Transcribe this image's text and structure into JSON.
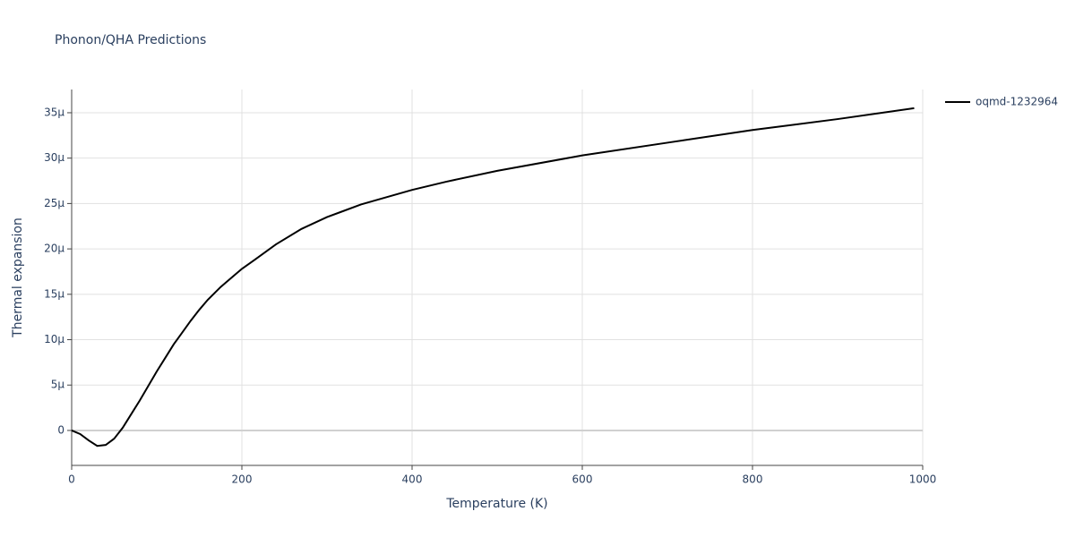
{
  "chart_data": {
    "type": "line",
    "title": "Phonon/QHA Predictions",
    "xlabel": "Temperature (K)",
    "ylabel": "Thermal expansion",
    "x": [
      0,
      10,
      20,
      30,
      40,
      50,
      60,
      70,
      80,
      90,
      100,
      110,
      120,
      130,
      140,
      150,
      160,
      175,
      190,
      200,
      215,
      240,
      270,
      300,
      340,
      400,
      440,
      500,
      600,
      700,
      800,
      900,
      990
    ],
    "series": [
      {
        "name": "oqmd-1232964",
        "color": "#000000",
        "values": [
          0,
          -4e-07,
          -1.1e-06,
          -1.7e-06,
          -1.6e-06,
          -9e-07,
          3e-07,
          1.8e-06,
          3.3e-06,
          4.9e-06,
          6.5e-06,
          8e-06,
          9.5e-06,
          1.08e-05,
          1.21e-05,
          1.33e-05,
          1.44e-05,
          1.58e-05,
          1.7e-05,
          1.78e-05,
          1.88e-05,
          2.05e-05,
          2.22e-05,
          2.35e-05,
          2.49e-05,
          2.65e-05,
          2.74e-05,
          2.86e-05,
          3.03e-05,
          3.17e-05,
          3.31e-05,
          3.43e-05,
          3.55e-05
        ]
      }
    ],
    "xlim": [
      0,
      1000
    ],
    "xticks": [
      0,
      200,
      400,
      600,
      800,
      1000
    ],
    "ylim": [
      -3.85e-06,
      3.756e-05
    ],
    "yticks": [
      0,
      {
        "value": 5e-06,
        "label": "5μ"
      },
      {
        "value": 1e-05,
        "label": "10μ"
      },
      {
        "value": 1.5e-05,
        "label": "15μ"
      },
      {
        "value": 2e-05,
        "label": "20μ"
      },
      {
        "value": 2.5e-05,
        "label": "25μ"
      },
      {
        "value": 3e-05,
        "label": "30μ"
      },
      {
        "value": 3.5e-05,
        "label": "35μ"
      }
    ],
    "grid": true
  }
}
